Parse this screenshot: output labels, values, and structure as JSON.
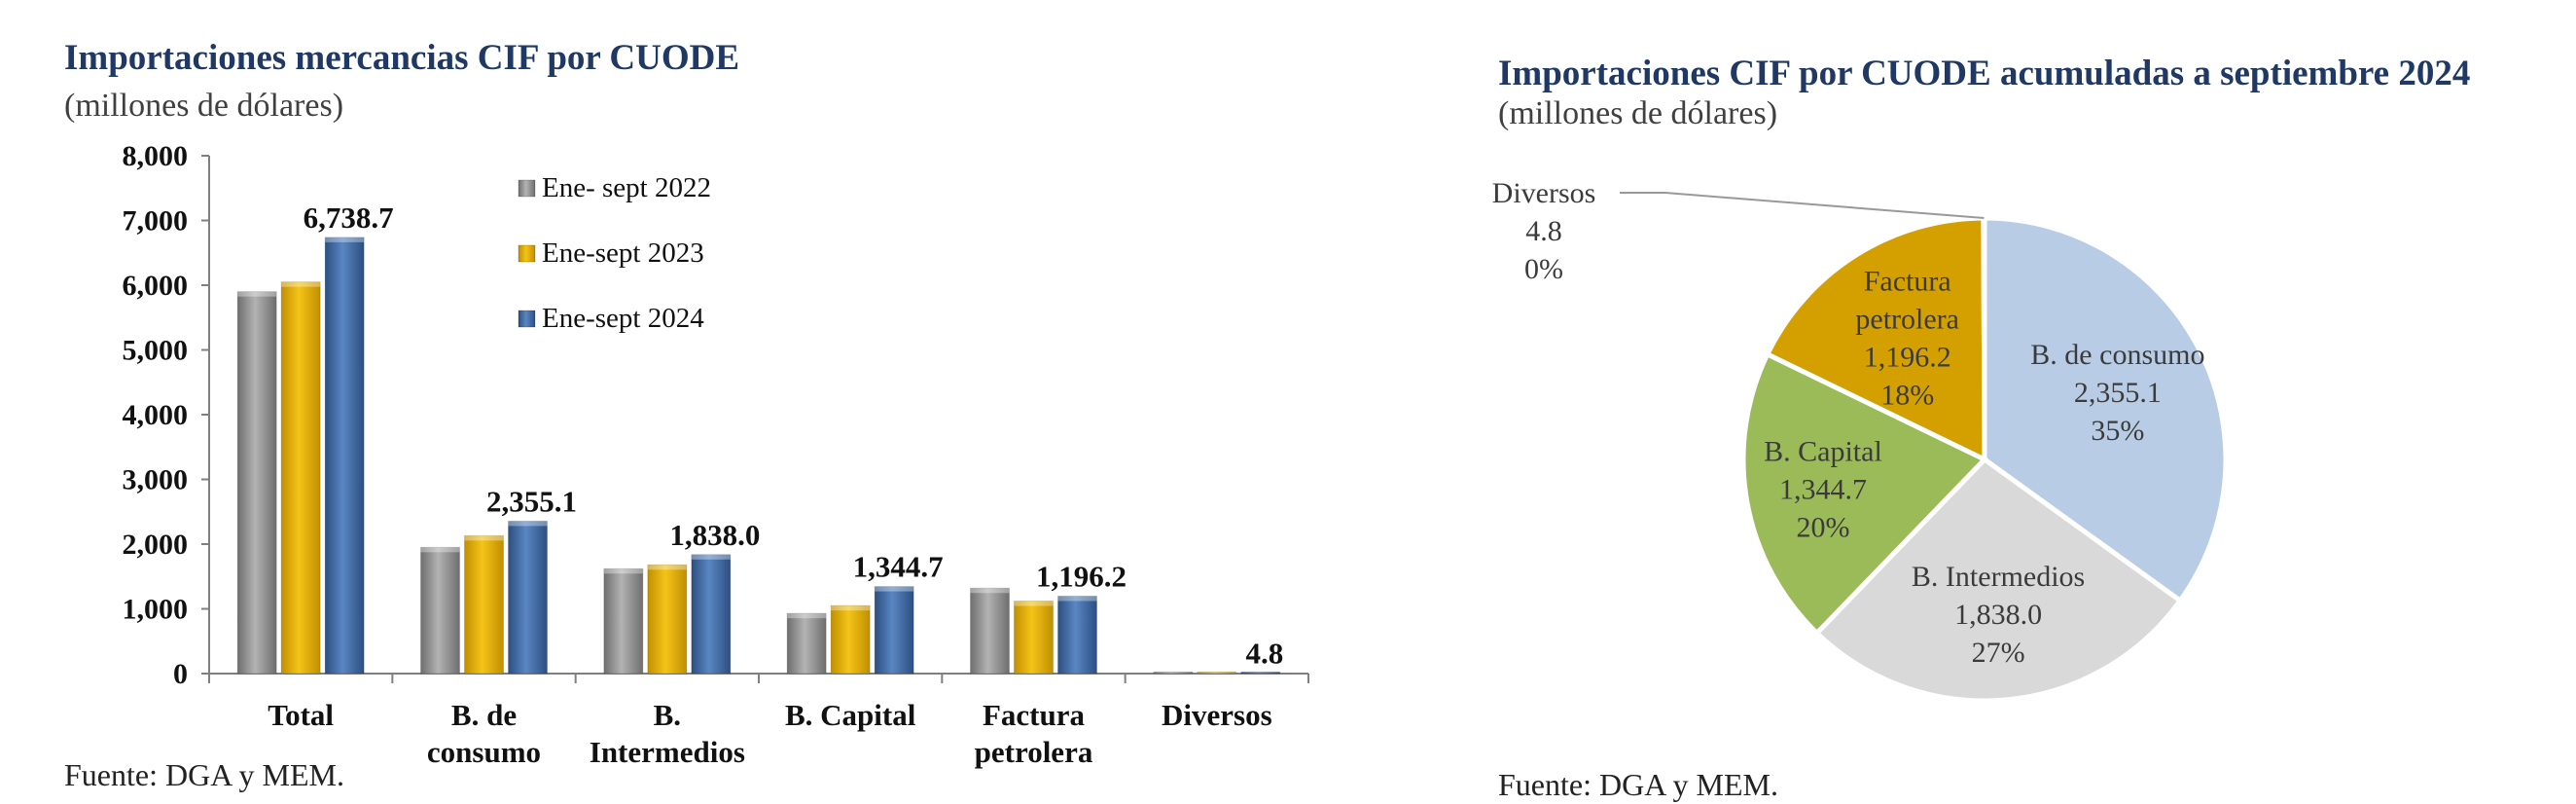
{
  "colors": {
    "title": "#1f3864",
    "series_2022": "#8c8c8c",
    "series_2023": "#e0a800",
    "series_2024": "#3a65a0",
    "pie_consumo": "#b8cde5",
    "pie_intermedios": "#d9d9d9",
    "pie_capital": "#9bbb59",
    "pie_petrolera": "#d4a000",
    "pie_diversos": "#7f7f7f"
  },
  "left": {
    "title": "Importaciones mercancias CIF por CUODE",
    "subtitle": "(millones de dólares)",
    "source": "Fuente: DGA y MEM."
  },
  "right": {
    "title": "Importaciones CIF por CUODE acumuladas a septiembre 2024",
    "subtitle": "(millones de dólares)",
    "source": "Fuente: DGA y MEM."
  },
  "chart_data": [
    {
      "type": "bar",
      "title": "Importaciones mercancias CIF por CUODE",
      "subtitle": "(millones de dólares)",
      "categories": [
        [
          "Total"
        ],
        [
          "B. de",
          "consumo"
        ],
        [
          "B.",
          "Intermedios"
        ],
        [
          "B. Capital"
        ],
        [
          "Factura",
          "petrolera"
        ],
        [
          "Diversos"
        ]
      ],
      "series": [
        {
          "name": "Ene- sept 2022",
          "values": [
            5900,
            1950,
            1620,
            930,
            1320,
            10
          ]
        },
        {
          "name": "Ene-sept 2023",
          "values": [
            6050,
            2130,
            1680,
            1050,
            1120,
            8
          ]
        },
        {
          "name": "Ene-sept 2024",
          "values": [
            6738.7,
            2355.1,
            1838.0,
            1344.7,
            1196.2,
            4.8
          ]
        }
      ],
      "data_labels": [
        "6,738.7",
        "2,355.1",
        "1,838.0",
        "1,344.7",
        "1,196.2",
        "4.8"
      ],
      "ylim": [
        0,
        8000
      ],
      "yticks": [
        "0",
        "1,000",
        "2,000",
        "3,000",
        "4,000",
        "5,000",
        "6,000",
        "7,000",
        "8,000"
      ],
      "legend_position": "top-right",
      "grid": false
    },
    {
      "type": "pie",
      "title": "Importaciones CIF por CUODE acumuladas a septiembre 2024",
      "subtitle": "(millones de dólares)",
      "slices": [
        {
          "label": "B. de consumo",
          "value": 2355.1,
          "value_text": "2,355.1",
          "percent": "35%"
        },
        {
          "label": "B. Intermedios",
          "value": 1838.0,
          "value_text": "1,838.0",
          "percent": "27%"
        },
        {
          "label": "B. Capital",
          "value": 1344.7,
          "value_text": "1,344.7",
          "percent": "20%"
        },
        {
          "label": "Factura petrolera",
          "label_lines": [
            "Factura",
            "petrolera"
          ],
          "value": 1196.2,
          "value_text": "1,196.2",
          "percent": "18%"
        },
        {
          "label": "Diversos",
          "value": 4.8,
          "value_text": "4.8",
          "percent": "0%"
        }
      ]
    }
  ]
}
